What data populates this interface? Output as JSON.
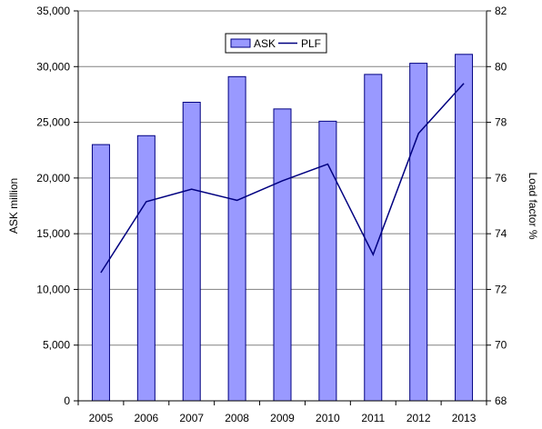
{
  "chart_data": {
    "type": "bar",
    "categories": [
      "2005",
      "2006",
      "2007",
      "2008",
      "2009",
      "2010",
      "2011",
      "2012",
      "2013"
    ],
    "series": [
      {
        "name": "ASK",
        "type": "bar",
        "axis": "left",
        "values": [
          23000,
          23800,
          26800,
          29100,
          26200,
          25100,
          29300,
          30300,
          31100
        ]
      },
      {
        "name": "PLF",
        "type": "line",
        "axis": "right",
        "values": [
          72.6,
          75.15,
          75.6,
          75.2,
          75.9,
          76.5,
          73.25,
          77.6,
          79.4
        ]
      }
    ],
    "xlabel": "",
    "ylabel": "ASK million",
    "y2label": "Load factor %",
    "ylim": [
      0,
      35000
    ],
    "y2lim": [
      68,
      82
    ],
    "yticks": [
      "0",
      "5,000",
      "10,000",
      "15,000",
      "20,000",
      "25,000",
      "30,000",
      "35,000"
    ],
    "y2ticks": [
      "68",
      "70",
      "72",
      "74",
      "76",
      "78",
      "80",
      "82"
    ],
    "grid": true,
    "legend_position": "top-center",
    "colors": {
      "bar_fill": "#9999ff",
      "bar_stroke": "#000080",
      "line": "#000080",
      "grid": "#808080"
    }
  }
}
